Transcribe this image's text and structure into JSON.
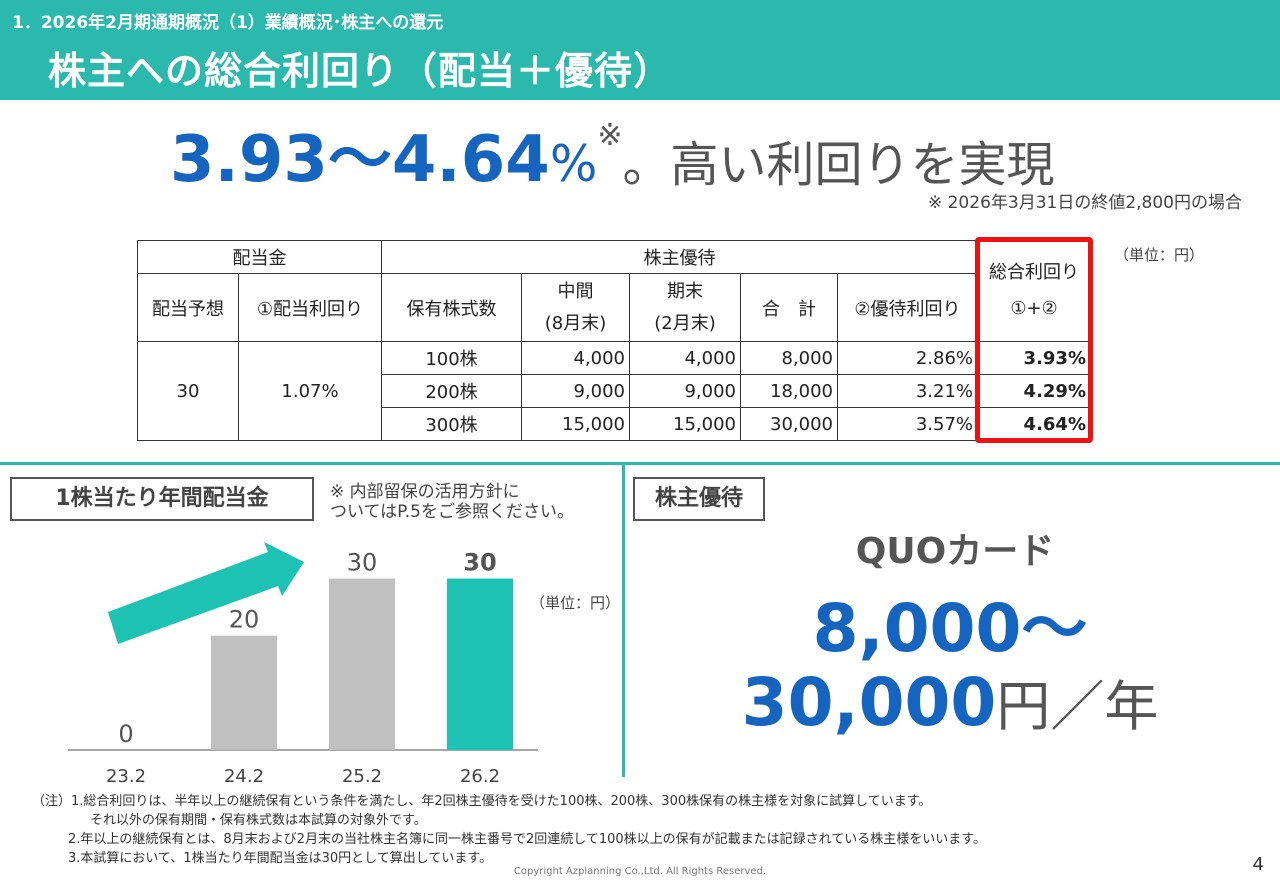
{
  "header": {
    "subtitle": "1．2026年2月期通期概況（1）業績概況･株主への還元",
    "title": "株主への総合利回り（配当＋優待）"
  },
  "headline": {
    "range": "3.93～4.64",
    "pct": "%",
    "mark": "※",
    "rest": "。高い利回りを実現",
    "note": "※ 2026年3月31日の終値2,800円の場合"
  },
  "table": {
    "unit": "（単位：円）",
    "h_dividend": "配当金",
    "h_benefit": "株主優待",
    "h_total_1": "総合利回り",
    "h_total_2": "①+②",
    "h_forecast": "配当予想",
    "h_div_yield": "①配当利回り",
    "h_shares": "保有株式数",
    "h_mid_1": "中間",
    "h_mid_2": "(8月末)",
    "h_end_1": "期末",
    "h_end_2": "(2月末)",
    "h_sum": "合　計",
    "h_ben_yield": "②優待利回り",
    "forecast": "30",
    "div_yield": "1.07%",
    "rows": [
      {
        "shares": "100株",
        "mid": "4,000",
        "end": "4,000",
        "sum": "8,000",
        "ben_yield": "2.86%",
        "total": "3.93%"
      },
      {
        "shares": "200株",
        "mid": "9,000",
        "end": "9,000",
        "sum": "18,000",
        "ben_yield": "3.21%",
        "total": "4.29%"
      },
      {
        "shares": "300株",
        "mid": "15,000",
        "end": "15,000",
        "sum": "30,000",
        "ben_yield": "3.57%",
        "total": "4.64%"
      }
    ]
  },
  "dividend_section": {
    "label": "1株当たり年間配当金",
    "note_1": "※ 内部留保の活用方針に",
    "note_2": "ついてはP.5をご参照ください。",
    "unit": "（単位：円）"
  },
  "chart_data": {
    "type": "bar",
    "categories": [
      "23.2",
      "24.2",
      "25.2",
      "26.2"
    ],
    "values": [
      0,
      20,
      30,
      30
    ],
    "value_labels": [
      "0",
      "20",
      "30",
      "30"
    ],
    "ylim": [
      0,
      35
    ],
    "colors": [
      "#c0c0c0",
      "#c0c0c0",
      "#c0c0c0",
      "#1ec2b2"
    ],
    "grid": false
  },
  "benefit_section": {
    "label": "株主優待",
    "title": "QUOカード",
    "amount_1": "8,000～",
    "amount_2": "30,000",
    "amount_unit": "円／年"
  },
  "footnotes": {
    "l1": "（注）1.総合利回りは、半年以上の継続保有という条件を満たし、年2回株主優待を受けた100株、200株、300株保有の株主様を対象に試算しています。",
    "l2": "それ以外の保有期間・保有株式数は本試算の対象外です。",
    "l3": "2.年以上の継続保有とは、8月末および2月末の当社株主名簿に同一株主番号で2回連続して100株以上の保有が記載または記録されている株主様をいいます。",
    "l4": "3.本試算において、1株当たり年間配当金は30円として算出しています。"
  },
  "copyright": "Copyright Azplanning Co.,Ltd. All Rights Reserved.",
  "page_number": "4",
  "colors": {
    "teal": "#2ab9ac",
    "blue": "#1565c0",
    "red": "#ee1111"
  }
}
